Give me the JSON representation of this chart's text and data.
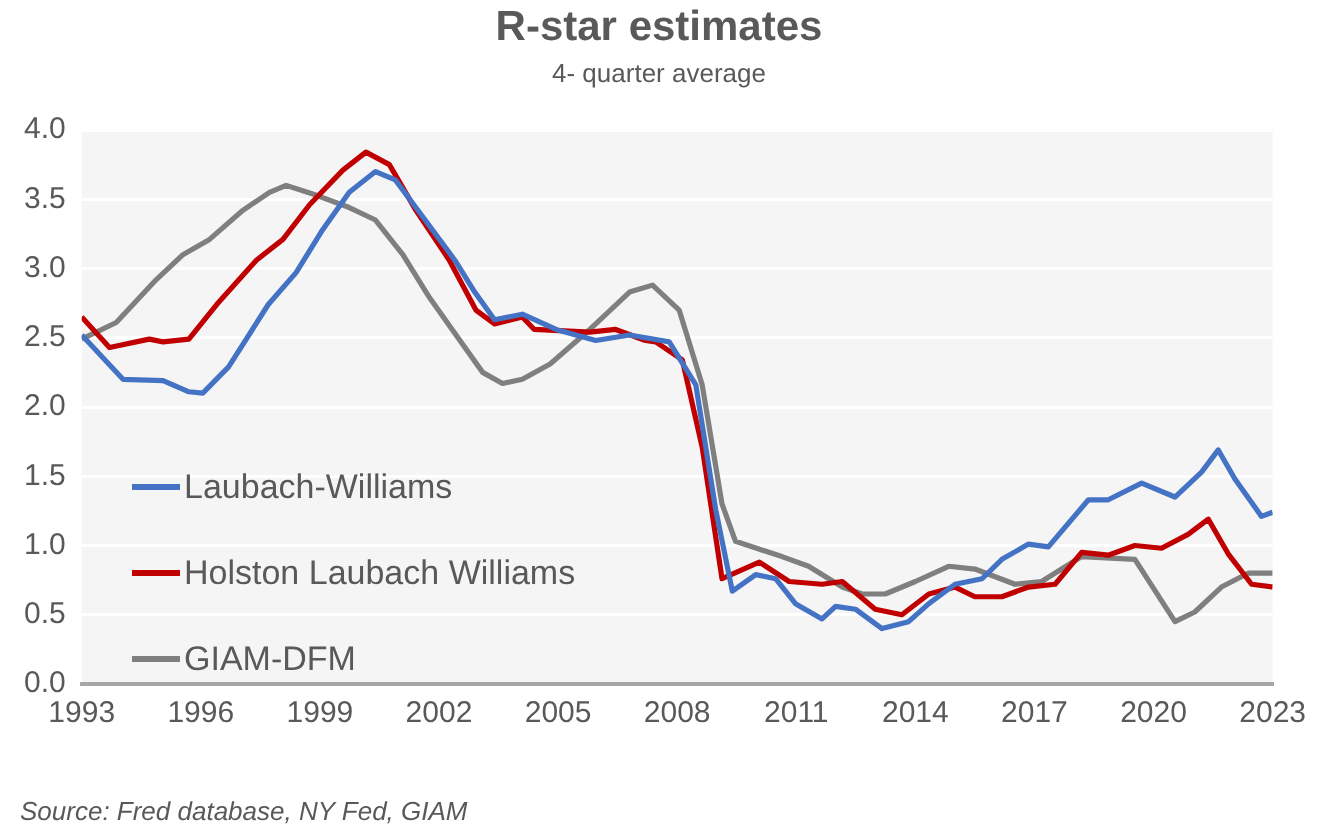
{
  "chart_data": {
    "type": "line",
    "title": "R-star estimates",
    "subtitle": "4- quarter average",
    "annotations": [
      "Source: Fred database, NY Fed, GIAM"
    ],
    "xlim": [
      1993,
      2023
    ],
    "xticks": [
      1993,
      1996,
      1999,
      2002,
      2005,
      2008,
      2011,
      2014,
      2017,
      2020,
      2023
    ],
    "ylim": [
      0,
      4
    ],
    "yticks": [
      {
        "value": 0,
        "label": "0.0"
      },
      {
        "value": 0.5,
        "label": "0.5"
      },
      {
        "value": 1,
        "label": "1.0"
      },
      {
        "value": 1.5,
        "label": "1.5"
      },
      {
        "value": 2,
        "label": "2.0"
      },
      {
        "value": 2.5,
        "label": "2.5"
      },
      {
        "value": 3,
        "label": "3.0"
      },
      {
        "value": 3.5,
        "label": "3.5"
      },
      {
        "value": 4,
        "label": "4.0"
      }
    ],
    "grid": "y",
    "legend": "bottom left",
    "marker": "none",
    "line_style": "solid",
    "series": [
      {
        "name": "Laubach-Williams",
        "color": "#4472c4",
        "x": [
          1993,
          1994.04,
          1995.05,
          1995.7,
          1996.05,
          1996.7,
          1997.7,
          1998.4,
          1999.07,
          1999.74,
          2000.4,
          2000.9,
          2001.6,
          2002.4,
          2002.9,
          2003.4,
          2004.1,
          2004.95,
          2005.95,
          2006.8,
          2007.8,
          2008.47,
          2008.97,
          2009.39,
          2009.98,
          2010.48,
          2010.98,
          2011.65,
          2011.99,
          2012.49,
          2013.16,
          2013.83,
          2014.34,
          2015,
          2015.68,
          2016.18,
          2016.85,
          2017.35,
          2018.36,
          2018.86,
          2019.7,
          2020.54,
          2021.21,
          2021.63,
          2022.05,
          2022.72,
          2023
        ],
        "values": [
          2.52,
          2.2,
          2.19,
          2.11,
          2.1,
          2.29,
          2.74,
          2.97,
          3.28,
          3.55,
          3.7,
          3.64,
          3.37,
          3.06,
          2.83,
          2.63,
          2.67,
          2.56,
          2.48,
          2.52,
          2.47,
          2.16,
          1.26,
          0.67,
          0.79,
          0.76,
          0.58,
          0.47,
          0.56,
          0.54,
          0.4,
          0.45,
          0.58,
          0.72,
          0.76,
          0.9,
          1.01,
          0.99,
          1.33,
          1.33,
          1.45,
          1.35,
          1.53,
          1.69,
          1.48,
          1.21,
          1.24
        ]
      },
      {
        "name": "Holston Laubach Williams",
        "color": "#c00000",
        "x": [
          1993,
          1993.7,
          1994.7,
          1995.05,
          1995.7,
          1996.4,
          1997.4,
          1998.07,
          1998.74,
          1999.58,
          2000.16,
          2000.75,
          2001.42,
          2002.26,
          2002.93,
          2003.4,
          2004.1,
          2004.4,
          2005.8,
          2006.45,
          2007.2,
          2007.46,
          2008.13,
          2008.63,
          2009.13,
          2010.07,
          2010.82,
          2011.65,
          2012.16,
          2012.99,
          2013.66,
          2014.34,
          2015,
          2015.5,
          2016.18,
          2016.85,
          2017.52,
          2018.19,
          2018.86,
          2019.53,
          2020.2,
          2020.87,
          2021.38,
          2021.88,
          2022.47,
          2023
        ],
        "values": [
          2.65,
          2.43,
          2.49,
          2.47,
          2.49,
          2.74,
          3.06,
          3.21,
          3.46,
          3.71,
          3.84,
          3.75,
          3.42,
          3.06,
          2.7,
          2.6,
          2.65,
          2.56,
          2.54,
          2.56,
          2.48,
          2.47,
          2.34,
          1.71,
          0.76,
          0.88,
          0.74,
          0.72,
          0.74,
          0.54,
          0.5,
          0.65,
          0.7,
          0.63,
          0.63,
          0.7,
          0.72,
          0.95,
          0.93,
          1,
          0.98,
          1.08,
          1.19,
          0.94,
          0.72,
          0.7
        ]
      },
      {
        "name": "GIAM-DFM",
        "color": "#7f7f7f",
        "x": [
          1993,
          1993.87,
          1994.88,
          1995.55,
          1996.22,
          1997.06,
          1997.73,
          1998.15,
          1998.9,
          1999.74,
          2000.4,
          2001.09,
          2001.76,
          2002.43,
          2003.1,
          2003.6,
          2004.1,
          2004.8,
          2005.8,
          2006.8,
          2007.38,
          2008.05,
          2008.63,
          2009.13,
          2009.47,
          2010.64,
          2011.31,
          2012.16,
          2012.66,
          2013.24,
          2014,
          2014.84,
          2015.5,
          2016.51,
          2017.18,
          2018.19,
          2019.53,
          2020.54,
          2021.04,
          2021.71,
          2022.38,
          2023
        ],
        "values": [
          2.49,
          2.61,
          2.92,
          3.1,
          3.21,
          3.42,
          3.55,
          3.6,
          3.53,
          3.44,
          3.35,
          3.1,
          2.79,
          2.52,
          2.25,
          2.17,
          2.2,
          2.31,
          2.56,
          2.83,
          2.88,
          2.7,
          2.16,
          1.3,
          1.03,
          0.92,
          0.85,
          0.7,
          0.65,
          0.65,
          0.74,
          0.85,
          0.83,
          0.72,
          0.74,
          0.92,
          0.9,
          0.45,
          0.52,
          0.7,
          0.8,
          0.8
        ]
      }
    ]
  }
}
